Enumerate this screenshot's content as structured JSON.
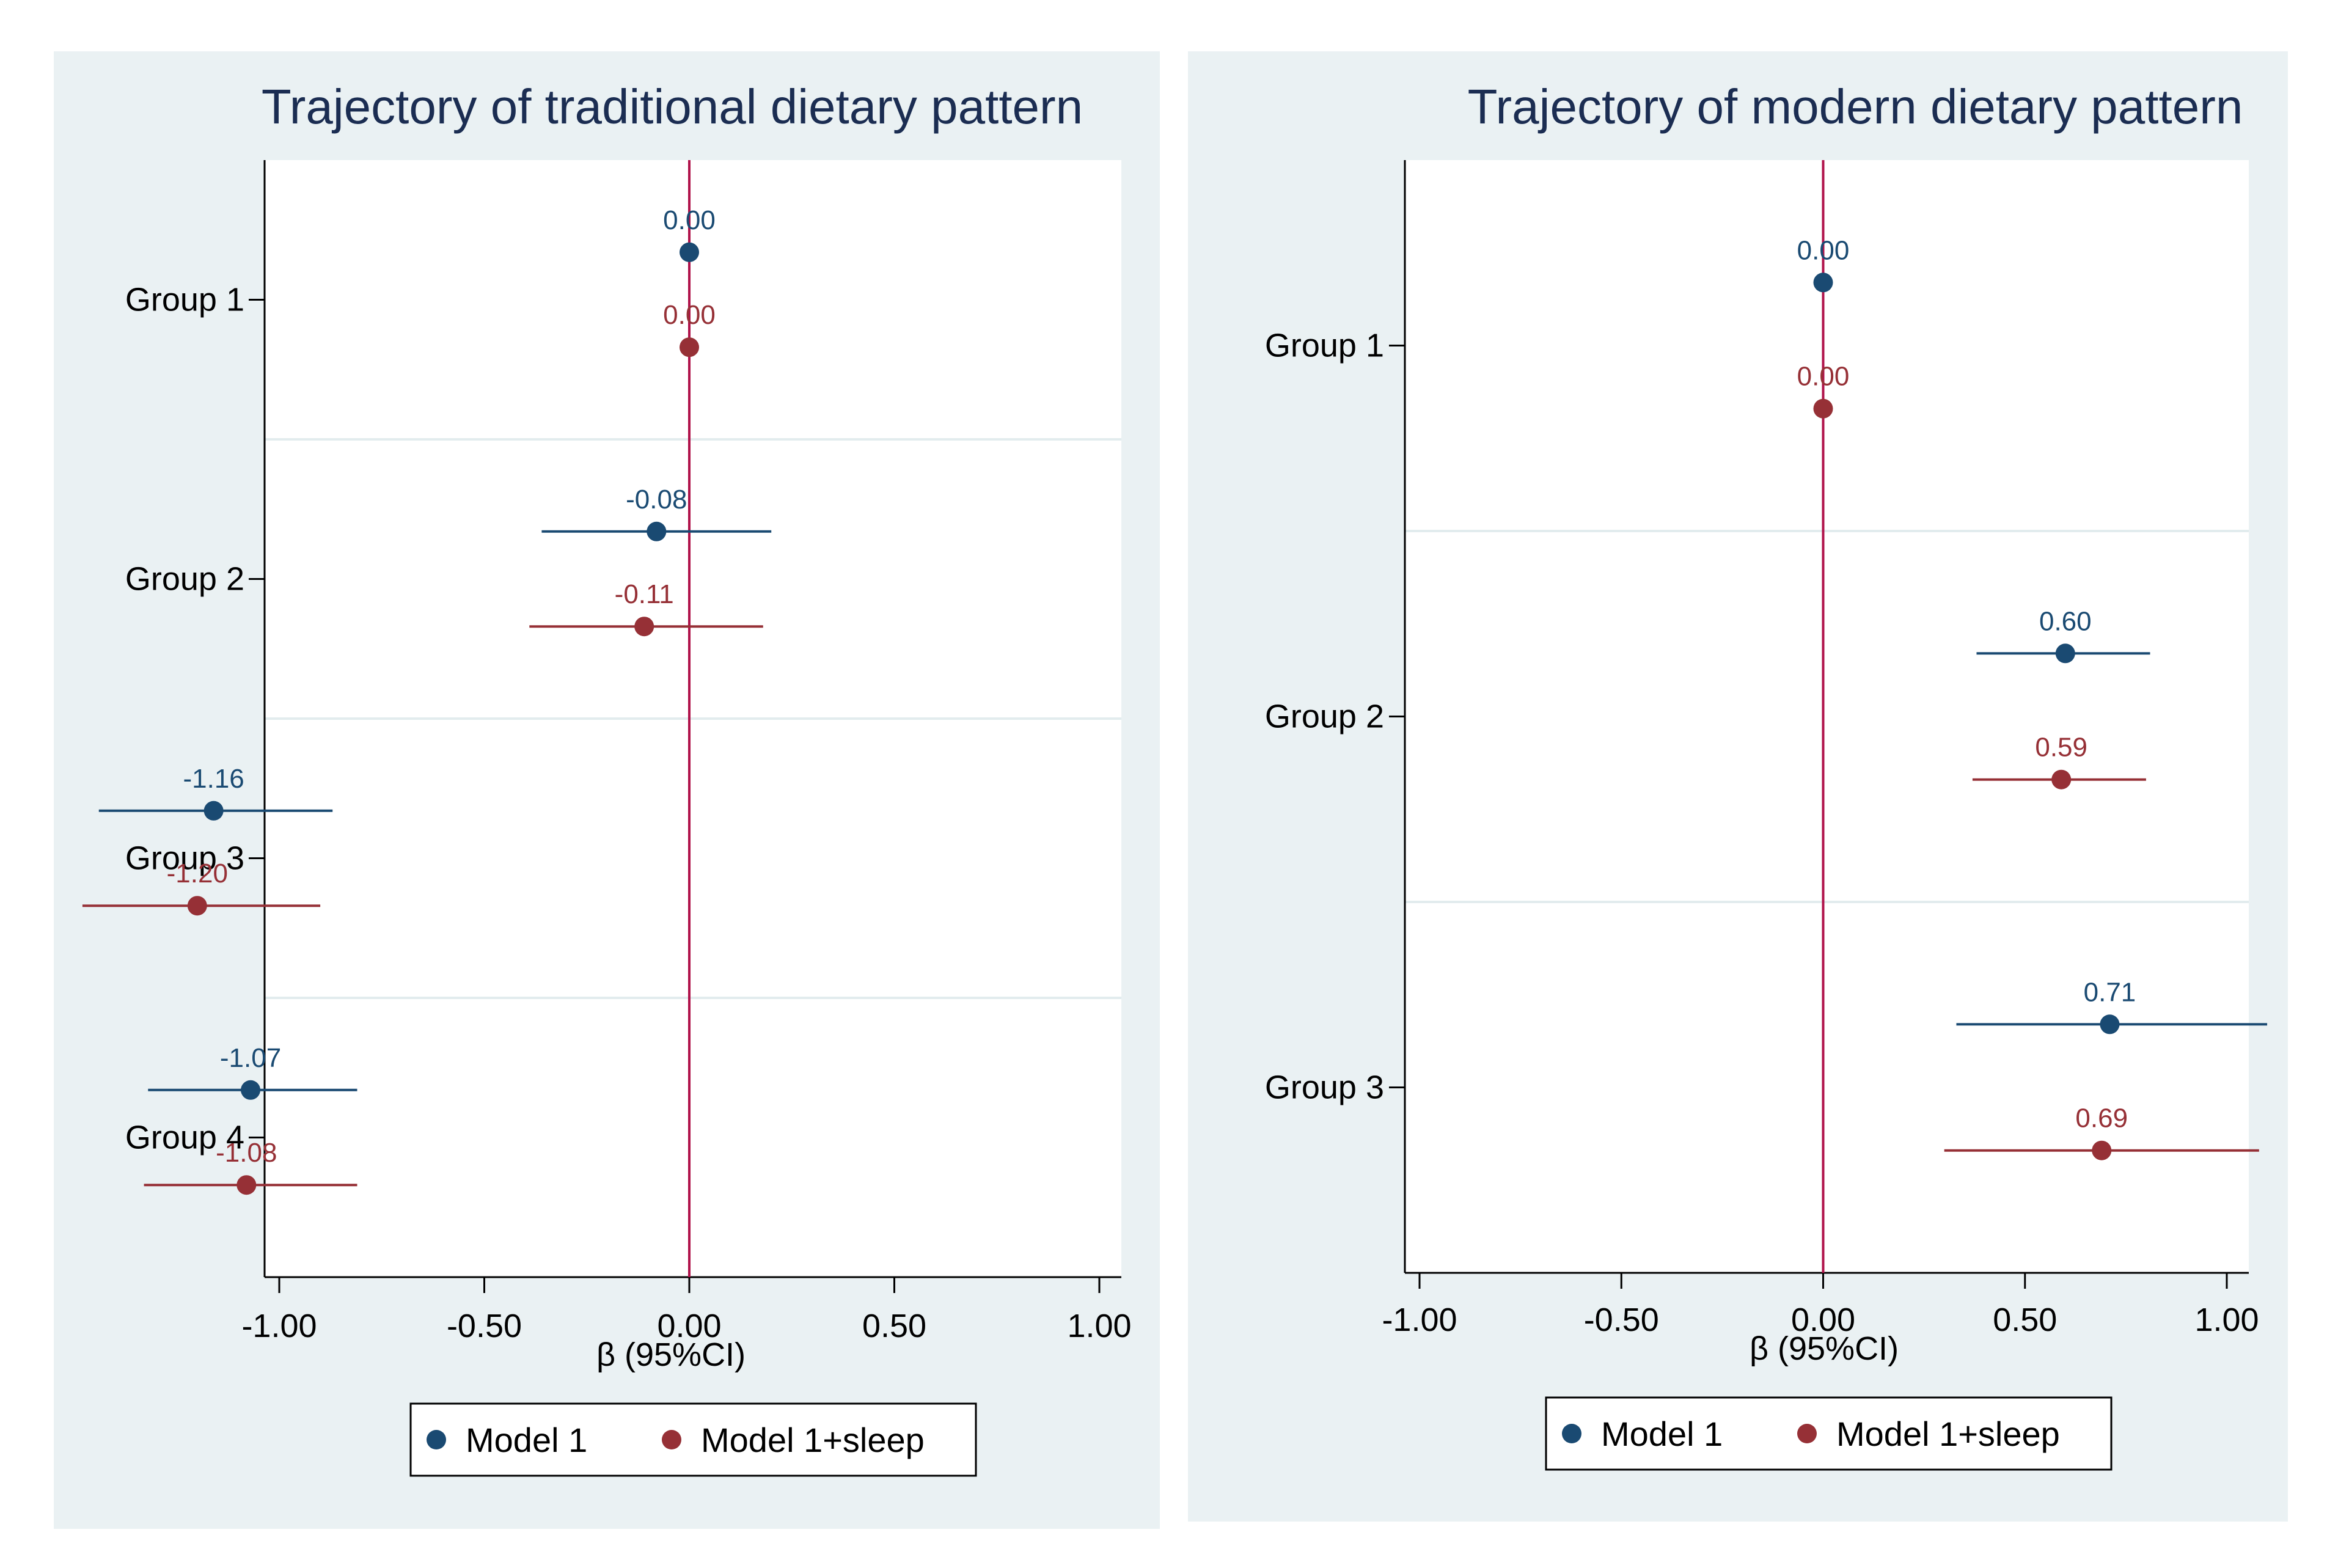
{
  "colors": {
    "model1": "#1a4a72",
    "model_sleep": "#963036",
    "refline": "#b0124a",
    "panel_bg": "#eaf1f3",
    "plot_bg": "#ffffff",
    "grid": "#e2ecee",
    "title": "#1b2d52"
  },
  "chart_data": [
    {
      "type": "forest",
      "title": "Trajectory of traditional dietary pattern",
      "xlabel": "β (95%CI)",
      "ylabel": "",
      "xlim": [
        -1.0,
        1.0
      ],
      "xticks": [
        -1.0,
        -0.5,
        0.0,
        0.5,
        1.0
      ],
      "xtick_labels": [
        "-1.00",
        "-0.50",
        "0.00",
        "0.50",
        "1.00"
      ],
      "reference_line": 0.0,
      "categories": [
        "Group 1",
        "Group 2",
        "Group 3",
        "Group 4"
      ],
      "series": [
        {
          "name": "Model 1",
          "color": "#1a4a72",
          "estimates": [
            0.0,
            -0.08,
            -1.16,
            -1.07
          ],
          "labels": [
            "0.00",
            "-0.08",
            "-1.16",
            "-1.07"
          ],
          "ci_lower": [
            null,
            -0.36,
            -1.44,
            -1.32
          ],
          "ci_upper": [
            null,
            0.2,
            -0.87,
            -0.81
          ]
        },
        {
          "name": "Model 1+sleep",
          "color": "#963036",
          "estimates": [
            0.0,
            -0.11,
            -1.2,
            -1.08
          ],
          "labels": [
            "0.00",
            "-0.11",
            "-1.20",
            "-1.08"
          ],
          "ci_lower": [
            null,
            -0.39,
            -1.48,
            -1.33
          ],
          "ci_upper": [
            null,
            0.18,
            -0.9,
            -0.81
          ]
        }
      ],
      "legend": [
        "Model 1",
        "Model 1+sleep"
      ],
      "legend_position": "bottom"
    },
    {
      "type": "forest",
      "title": "Trajectory of modern dietary pattern",
      "xlabel": "β (95%CI)",
      "ylabel": "",
      "xlim": [
        -1.0,
        1.0
      ],
      "xticks": [
        -1.0,
        -0.5,
        0.0,
        0.5,
        1.0
      ],
      "xtick_labels": [
        "-1.00",
        "-0.50",
        "0.00",
        "0.50",
        "1.00"
      ],
      "reference_line": 0.0,
      "categories": [
        "Group 1",
        "Group 2",
        "Group 3"
      ],
      "series": [
        {
          "name": "Model 1",
          "color": "#1a4a72",
          "estimates": [
            0.0,
            0.6,
            0.71
          ],
          "labels": [
            "0.00",
            "0.60",
            "0.71"
          ],
          "ci_lower": [
            null,
            0.38,
            0.33
          ],
          "ci_upper": [
            null,
            0.81,
            1.1
          ]
        },
        {
          "name": "Model 1+sleep",
          "color": "#963036",
          "estimates": [
            0.0,
            0.59,
            0.69
          ],
          "labels": [
            "0.00",
            "0.59",
            "0.69"
          ],
          "ci_lower": [
            null,
            0.37,
            0.3
          ],
          "ci_upper": [
            null,
            0.8,
            1.08
          ]
        }
      ],
      "legend": [
        "Model 1",
        "Model 1+sleep"
      ],
      "legend_position": "bottom"
    }
  ]
}
